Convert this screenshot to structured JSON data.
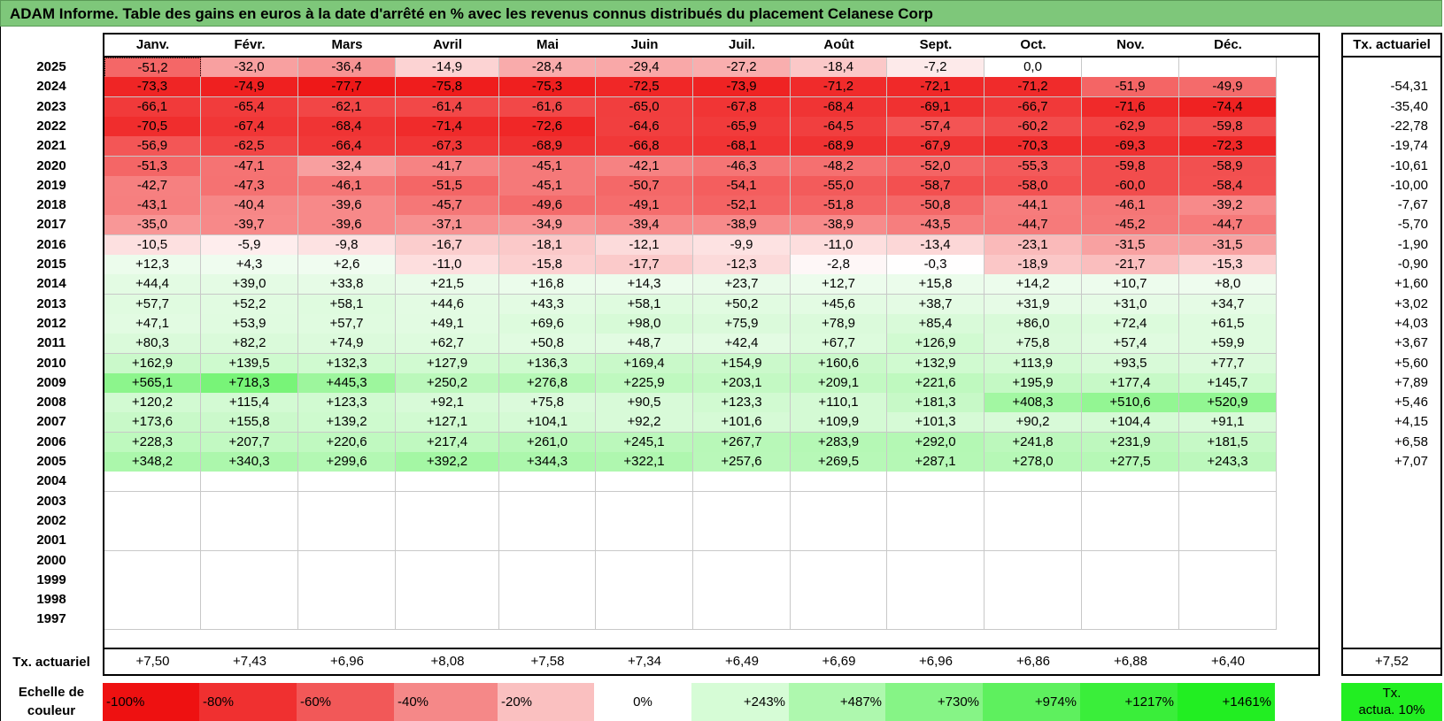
{
  "title": "ADAM Informe. Table des gains en euros à la date d'arrêté en % avec les revenus connus distribués du placement Celanese Corp",
  "months": [
    "Janv.",
    "Févr.",
    "Mars",
    "Avril",
    "Mai",
    "Juin",
    "Juil.",
    "Août",
    "Sept.",
    "Oct.",
    "Nov.",
    "Déc."
  ],
  "tx_header": "Tx. actuariel",
  "rows": [
    {
      "year": "2025",
      "values": [
        "-51,2",
        "-32,0",
        "-36,4",
        "-14,9",
        "-28,4",
        "-29,4",
        "-27,2",
        "-18,4",
        "-7,2",
        "0,0",
        "",
        ""
      ],
      "tx": ""
    },
    {
      "year": "2024",
      "values": [
        "-73,3",
        "-74,9",
        "-77,7",
        "-75,8",
        "-75,3",
        "-72,5",
        "-73,9",
        "-71,2",
        "-72,1",
        "-71,2",
        "-51,9",
        "-49,9"
      ],
      "tx": "-54,31"
    },
    {
      "year": "2023",
      "values": [
        "-66,1",
        "-65,4",
        "-62,1",
        "-61,4",
        "-61,6",
        "-65,0",
        "-67,8",
        "-68,4",
        "-69,1",
        "-66,7",
        "-71,6",
        "-74,4"
      ],
      "tx": "-35,40"
    },
    {
      "year": "2022",
      "values": [
        "-70,5",
        "-67,4",
        "-68,4",
        "-71,4",
        "-72,6",
        "-64,6",
        "-65,9",
        "-64,5",
        "-57,4",
        "-60,2",
        "-62,9",
        "-59,8"
      ],
      "tx": "-22,78"
    },
    {
      "year": "2021",
      "values": [
        "-56,9",
        "-62,5",
        "-66,4",
        "-67,3",
        "-68,9",
        "-66,8",
        "-68,1",
        "-68,9",
        "-67,9",
        "-70,3",
        "-69,3",
        "-72,3"
      ],
      "tx": "-19,74"
    },
    {
      "year": "2020",
      "values": [
        "-51,3",
        "-47,1",
        "-32,4",
        "-41,7",
        "-45,1",
        "-42,1",
        "-46,3",
        "-48,2",
        "-52,0",
        "-55,3",
        "-59,8",
        "-58,9"
      ],
      "tx": "-10,61"
    },
    {
      "year": "2019",
      "values": [
        "-42,7",
        "-47,3",
        "-46,1",
        "-51,5",
        "-45,1",
        "-50,7",
        "-54,1",
        "-55,0",
        "-58,7",
        "-58,0",
        "-60,0",
        "-58,4"
      ],
      "tx": "-10,00"
    },
    {
      "year": "2018",
      "values": [
        "-43,1",
        "-40,4",
        "-39,6",
        "-45,7",
        "-49,6",
        "-49,1",
        "-52,1",
        "-51,8",
        "-50,8",
        "-44,1",
        "-46,1",
        "-39,2"
      ],
      "tx": "-7,67"
    },
    {
      "year": "2017",
      "values": [
        "-35,0",
        "-39,7",
        "-39,6",
        "-37,1",
        "-34,9",
        "-39,4",
        "-38,9",
        "-38,9",
        "-43,5",
        "-44,7",
        "-45,2",
        "-44,7"
      ],
      "tx": "-5,70"
    },
    {
      "year": "2016",
      "values": [
        "-10,5",
        "-5,9",
        "-9,8",
        "-16,7",
        "-18,1",
        "-12,1",
        "-9,9",
        "-11,0",
        "-13,4",
        "-23,1",
        "-31,5",
        "-31,5"
      ],
      "tx": "-1,90"
    },
    {
      "year": "2015",
      "values": [
        "+12,3",
        "+4,3",
        "+2,6",
        "-11,0",
        "-15,8",
        "-17,7",
        "-12,3",
        "-2,8",
        "-0,3",
        "-18,9",
        "-21,7",
        "-15,3"
      ],
      "tx": "-0,90"
    },
    {
      "year": "2014",
      "values": [
        "+44,4",
        "+39,0",
        "+33,8",
        "+21,5",
        "+16,8",
        "+14,3",
        "+23,7",
        "+12,7",
        "+15,8",
        "+14,2",
        "+10,7",
        "+8,0"
      ],
      "tx": "+1,60"
    },
    {
      "year": "2013",
      "values": [
        "+57,7",
        "+52,2",
        "+58,1",
        "+44,6",
        "+43,3",
        "+58,1",
        "+50,2",
        "+45,6",
        "+38,7",
        "+31,9",
        "+31,0",
        "+34,7"
      ],
      "tx": "+3,02"
    },
    {
      "year": "2012",
      "values": [
        "+47,1",
        "+53,9",
        "+57,7",
        "+49,1",
        "+69,6",
        "+98,0",
        "+75,9",
        "+78,9",
        "+85,4",
        "+86,0",
        "+72,4",
        "+61,5"
      ],
      "tx": "+4,03"
    },
    {
      "year": "2011",
      "values": [
        "+80,3",
        "+82,2",
        "+74,9",
        "+62,7",
        "+50,8",
        "+48,7",
        "+42,4",
        "+67,7",
        "+126,9",
        "+75,8",
        "+57,4",
        "+59,9"
      ],
      "tx": "+3,67"
    },
    {
      "year": "2010",
      "values": [
        "+162,9",
        "+139,5",
        "+132,3",
        "+127,9",
        "+136,3",
        "+169,4",
        "+154,9",
        "+160,6",
        "+132,9",
        "+113,9",
        "+93,5",
        "+77,7"
      ],
      "tx": "+5,60"
    },
    {
      "year": "2009",
      "values": [
        "+565,1",
        "+718,3",
        "+445,3",
        "+250,2",
        "+276,8",
        "+225,9",
        "+203,1",
        "+209,1",
        "+221,6",
        "+195,9",
        "+177,4",
        "+145,7"
      ],
      "tx": "+7,89"
    },
    {
      "year": "2008",
      "values": [
        "+120,2",
        "+115,4",
        "+123,3",
        "+92,1",
        "+75,8",
        "+90,5",
        "+123,3",
        "+110,1",
        "+181,3",
        "+408,3",
        "+510,6",
        "+520,9"
      ],
      "tx": "+5,46"
    },
    {
      "year": "2007",
      "values": [
        "+173,6",
        "+155,8",
        "+139,2",
        "+127,1",
        "+104,1",
        "+92,2",
        "+101,6",
        "+109,9",
        "+101,3",
        "+90,2",
        "+104,4",
        "+91,1"
      ],
      "tx": "+4,15"
    },
    {
      "year": "2006",
      "values": [
        "+228,3",
        "+207,7",
        "+220,6",
        "+217,4",
        "+261,0",
        "+245,1",
        "+267,7",
        "+283,9",
        "+292,0",
        "+241,8",
        "+231,9",
        "+181,5"
      ],
      "tx": "+6,58"
    },
    {
      "year": "2005",
      "values": [
        "+348,2",
        "+340,3",
        "+299,6",
        "+392,2",
        "+344,3",
        "+322,1",
        "+257,6",
        "+269,5",
        "+287,1",
        "+278,0",
        "+277,5",
        "+243,3"
      ],
      "tx": "+7,07"
    },
    {
      "year": "2004",
      "values": [
        "",
        "",
        "",
        "",
        "",
        "",
        "",
        "",
        "",
        "",
        "",
        ""
      ],
      "tx": ""
    },
    {
      "year": "2003",
      "values": [
        "",
        "",
        "",
        "",
        "",
        "",
        "",
        "",
        "",
        "",
        "",
        ""
      ],
      "tx": ""
    },
    {
      "year": "2002",
      "values": [
        "",
        "",
        "",
        "",
        "",
        "",
        "",
        "",
        "",
        "",
        "",
        ""
      ],
      "tx": ""
    },
    {
      "year": "2001",
      "values": [
        "",
        "",
        "",
        "",
        "",
        "",
        "",
        "",
        "",
        "",
        "",
        ""
      ],
      "tx": ""
    },
    {
      "year": "2000",
      "values": [
        "",
        "",
        "",
        "",
        "",
        "",
        "",
        "",
        "",
        "",
        "",
        ""
      ],
      "tx": ""
    },
    {
      "year": "1999",
      "values": [
        "",
        "",
        "",
        "",
        "",
        "",
        "",
        "",
        "",
        "",
        "",
        ""
      ],
      "tx": ""
    },
    {
      "year": "1998",
      "values": [
        "",
        "",
        "",
        "",
        "",
        "",
        "",
        "",
        "",
        "",
        "",
        ""
      ],
      "tx": ""
    },
    {
      "year": "1997",
      "values": [
        "",
        "",
        "",
        "",
        "",
        "",
        "",
        "",
        "",
        "",
        "",
        ""
      ],
      "tx": ""
    }
  ],
  "summary": {
    "label": "Tx. actuariel",
    "values": [
      "+7,50",
      "+7,43",
      "+6,96",
      "+8,08",
      "+7,58",
      "+7,34",
      "+6,49",
      "+6,69",
      "+6,96",
      "+6,86",
      "+6,88",
      "+6,40"
    ],
    "total": "+7,52"
  },
  "scale": {
    "label_line1": "Echelle de",
    "label_line2": "couleur",
    "steps": [
      {
        "label": "-100%",
        "color": "#ee1111"
      },
      {
        "label": "-80%",
        "color": "#f03030"
      },
      {
        "label": "-60%",
        "color": "#f25858"
      },
      {
        "label": "-40%",
        "color": "#f58888"
      },
      {
        "label": "-20%",
        "color": "#fac0c0"
      },
      {
        "label": "0%",
        "color": "#ffffff"
      },
      {
        "label": "+243%",
        "color": "#d6fcd6"
      },
      {
        "label": "+487%",
        "color": "#aef8ae"
      },
      {
        "label": "+730%",
        "color": "#86f486"
      },
      {
        "label": "+974%",
        "color": "#5ef05e"
      },
      {
        "label": "+1217%",
        "color": "#3aee3a"
      },
      {
        "label": "+1461%",
        "color": "#22ee22"
      }
    ],
    "tx_line1": "Tx.",
    "tx_line2": "actua. 10%"
  }
}
